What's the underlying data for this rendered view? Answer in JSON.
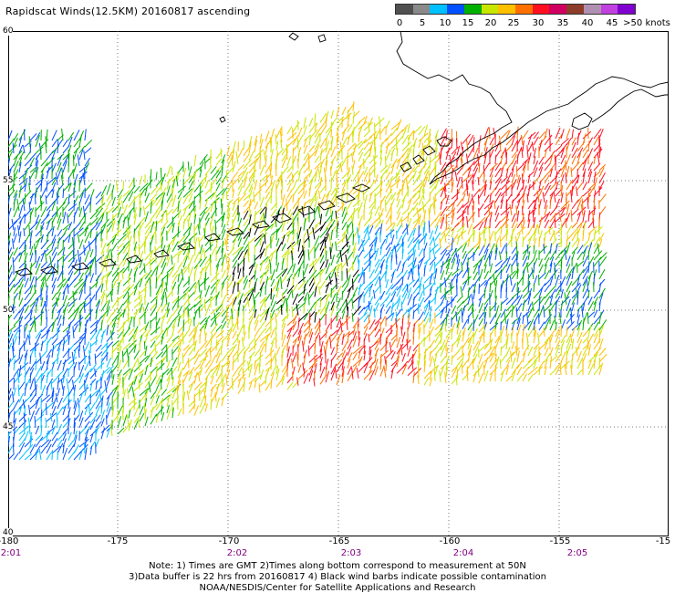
{
  "title": "Rapidscat Winds(12.5KM) 20160817 ascending",
  "legend": {
    "labels": [
      "0",
      "5",
      "10",
      "15",
      "20",
      "25",
      "30",
      "35",
      "40",
      "45",
      ">50 knots"
    ],
    "colors": [
      "#505050",
      "#8a8a8a",
      "#00c0ff",
      "#0050ff",
      "#00b000",
      "#c8e600",
      "#ffc000",
      "#ff7000",
      "#ff1020",
      "#d00060",
      "#8c3c28",
      "#b090b0",
      "#c040e0",
      "#8000d0"
    ]
  },
  "axes": {
    "lon_labels": [
      "-180",
      "-175",
      "-170",
      "-165",
      "-160",
      "-155",
      "-15"
    ],
    "lat_labels": [
      "60",
      "55",
      "50",
      "45",
      "40"
    ],
    "time_labels": [
      "2:01",
      "2:02",
      "2:03",
      "2:04",
      "2:05"
    ]
  },
  "notes": {
    "line1": "Note: 1) Times are GMT 2)Times along bottom correspond to measurement at 50N",
    "line2": "3)Data buffer is 22 hrs from 20160817 4) Black wind barbs indicate possible contamination",
    "line3": "NOAA/NESDIS/Center for Satellite Applications and Research"
  }
}
